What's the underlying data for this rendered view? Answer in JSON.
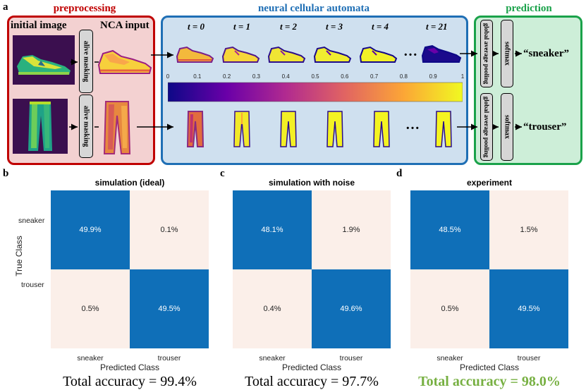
{
  "panels": {
    "a": "a",
    "b": "b",
    "c": "c",
    "d": "d"
  },
  "stages": {
    "preprocessing": {
      "title": "preprocessing",
      "color": "#c00000",
      "fill": "#f3d1d1"
    },
    "nca": {
      "title": "neural cellular automata",
      "color": "#1f6fb5",
      "fill": "#cfe0ef"
    },
    "prediction": {
      "title": "prediction",
      "color": "#1aa24a",
      "fill": "#cdeed8"
    }
  },
  "labels": {
    "initial_image": "initial image",
    "nca_input": "NCA input",
    "alive_masking": "alive masking",
    "global_avg_pooling": "global average pooling",
    "softmax": "softmax",
    "ellipsis": "…",
    "sneaker_out": "“sneaker”",
    "trouser_out": "“trouser”"
  },
  "timesteps": [
    "t = 0",
    "t = 1",
    "t = 2",
    "t = 3",
    "t = 4",
    "t = 21"
  ],
  "colorbar": {
    "ticks": [
      "0",
      "0.1",
      "0.2",
      "0.3",
      "0.4",
      "0.5",
      "0.6",
      "0.7",
      "0.8",
      "0.9",
      "1"
    ],
    "colors": [
      "#0d0887",
      "#6a00a8",
      "#b12a90",
      "#e16462",
      "#fca636",
      "#f0f921"
    ]
  },
  "confusion": {
    "y_axis_label": "True Class",
    "x_axis_label": "Predicted Class",
    "row_labels": [
      "sneaker",
      "trouser"
    ],
    "col_labels": [
      "sneaker",
      "trouser"
    ],
    "diag_color": "#0f6fb8",
    "off_color": "#fbefe9",
    "matrices": [
      {
        "title": "simulation (ideal)",
        "cells": [
          [
            "49.9%",
            "0.1%"
          ],
          [
            "0.5%",
            "49.5%"
          ]
        ],
        "accuracy": "Total accuracy = 99.4%",
        "acc_color": "#000000"
      },
      {
        "title": "simulation with noise",
        "cells": [
          [
            "48.1%",
            "1.9%"
          ],
          [
            "0.4%",
            "49.6%"
          ]
        ],
        "accuracy": "Total accuracy = 97.7%",
        "acc_color": "#000000"
      },
      {
        "title": "experiment",
        "cells": [
          [
            "48.5%",
            "1.5%"
          ],
          [
            "0.5%",
            "49.5%"
          ]
        ],
        "accuracy": "Total accuracy = 98.0%",
        "acc_color": "#77b042"
      }
    ]
  }
}
